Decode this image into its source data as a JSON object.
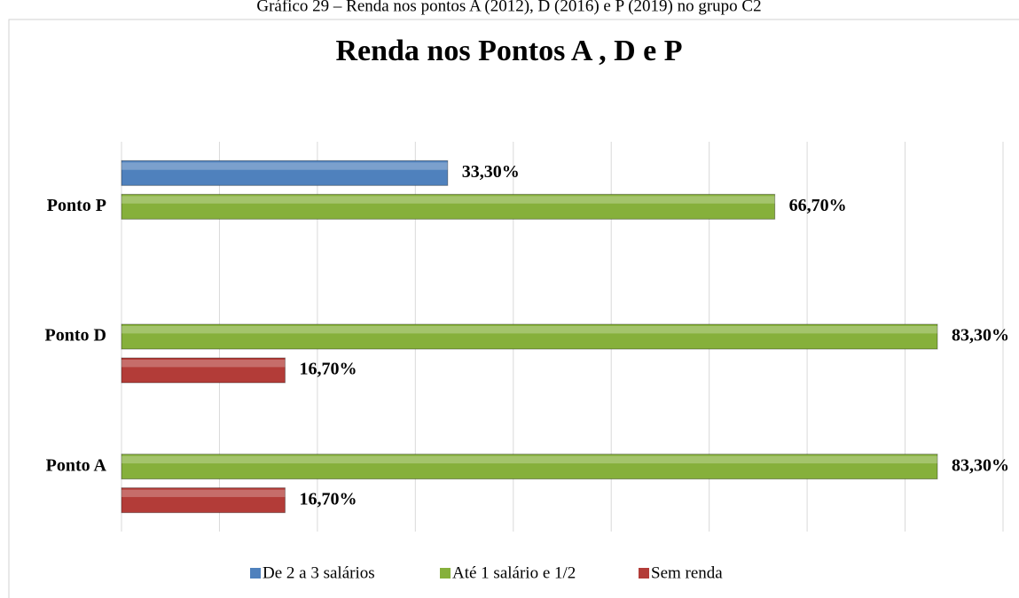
{
  "caption": "Gráfico 29 – Renda nos pontos A (2012), D (2016) e P (2019) no grupo C2",
  "chart_data": {
    "type": "hbar",
    "title": "Renda nos Pontos A , D e P",
    "categories": [
      "Ponto A",
      "Ponto D",
      "Ponto P"
    ],
    "series": [
      {
        "name": "De 2 a 3 salários",
        "color": "#4f81bd",
        "values": [
          null,
          null,
          33.3
        ],
        "value_labels": [
          null,
          null,
          "33,30%"
        ]
      },
      {
        "name": "Até 1 salário e 1/2",
        "color": "#86b03b",
        "values": [
          83.3,
          83.3,
          66.7
        ],
        "value_labels": [
          "83,30%",
          "83,30%",
          "66,70%"
        ]
      },
      {
        "name": "Sem renda",
        "color": "#b33c38",
        "values": [
          16.7,
          16.7,
          null
        ],
        "value_labels": [
          "16,70%",
          "16,70%",
          null
        ]
      }
    ],
    "xlim": [
      0,
      90
    ],
    "xticks": [
      0,
      10,
      20,
      30,
      40,
      50,
      60,
      70,
      80,
      90
    ],
    "grid": true,
    "legend": "bottom"
  }
}
